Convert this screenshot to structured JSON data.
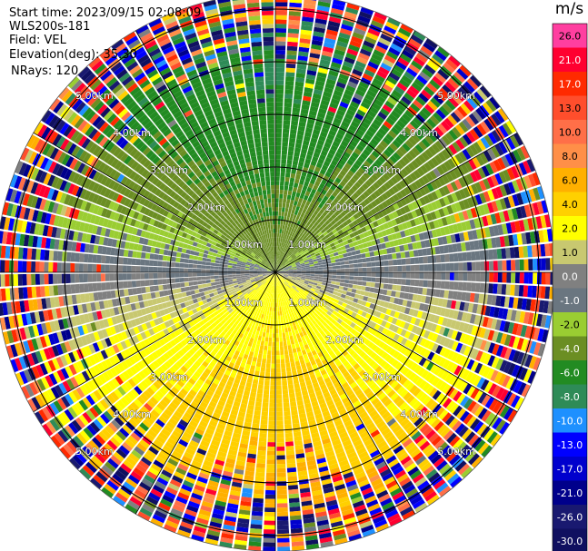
{
  "header": {
    "start_time": "Start time: 2023/09/15 02:08:09",
    "instrument": "WLS200s-181",
    "field": "Field: VEL",
    "elevation": "Elevation(deg): 35.30",
    "nrays": "NRays: 120"
  },
  "colorbar": {
    "unit": "m/s",
    "levels": [
      26.0,
      21.0,
      17.0,
      13.0,
      10.0,
      8.0,
      6.0,
      4.0,
      2.0,
      1.0,
      0.0,
      -1.0,
      -2.0,
      -4.0,
      -6.0,
      -8.0,
      -10.0,
      -13.0,
      -17.0,
      -21.0,
      -26.0,
      -30.0
    ],
    "tick_labels": [
      "26.0",
      "21.0",
      "17.0",
      "13.0",
      "10.0",
      "8.0",
      "6.0",
      "4.0",
      "2.0",
      "1.0",
      "0.0",
      "-1.0",
      "-2.0",
      "-4.0",
      "-6.0",
      "-8.0",
      "-10.0",
      "-13.0",
      "-17.0",
      "-21.0",
      "-26.0",
      "-30.0"
    ],
    "colors": [
      "#ff3fa0",
      "#ff0030",
      "#ff2a00",
      "#ff4e2c",
      "#ff6f48",
      "#ff8f48",
      "#ffb000",
      "#ffd000",
      "#ffff00",
      "#c8c870",
      "#808080",
      "#6a7680",
      "#9acd32",
      "#6b8e23",
      "#228b22",
      "#2e8b57",
      "#1e90ff",
      "#0000ff",
      "#0000cd",
      "#00008b",
      "#191970",
      "#101060"
    ]
  },
  "range_rings": {
    "labels": [
      "1.00km",
      "2.00km",
      "3.00km",
      "4.00km",
      "5.00km"
    ]
  },
  "chart_data": {
    "type": "heatmap",
    "title": "",
    "field": "VEL",
    "units": "m/s",
    "scan": "PPI",
    "elevation_deg": 35.3,
    "nrays": 120,
    "range_rings_km": [
      1,
      2,
      3,
      4,
      5
    ],
    "max_range_km": 5.3,
    "spokes_every_deg": 30,
    "value_range": [
      -30,
      26
    ],
    "velocity_pattern": {
      "toward_sector_azimuth_deg": [
        270,
        90
      ],
      "away_sector_azimuth_deg": [
        90,
        270
      ],
      "near_range_max_abs_velocity": 6,
      "noise_beyond_km": 4.0
    }
  }
}
